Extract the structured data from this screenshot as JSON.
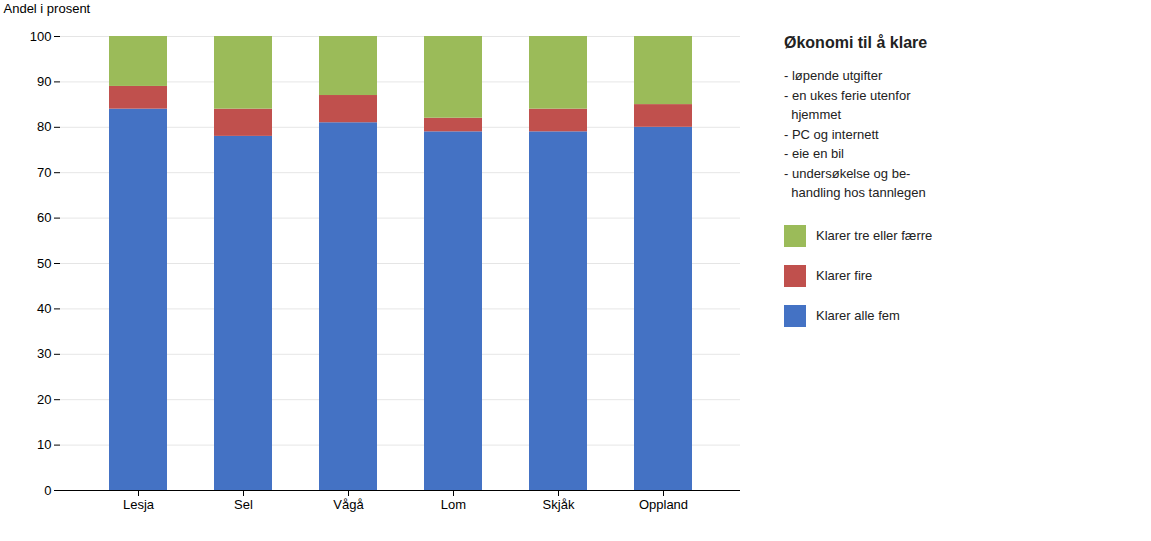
{
  "chart_data": {
    "type": "bar",
    "stacked": true,
    "categories": [
      "Lesja",
      "Sel",
      "Vågå",
      "Lom",
      "Skjåk",
      "Oppland"
    ],
    "series": [
      {
        "name": "Klarer alle fem",
        "color": "#4472C4",
        "values": [
          84,
          78,
          81,
          79,
          79,
          80
        ]
      },
      {
        "name": "Klarer fire",
        "color": "#C0504D",
        "values": [
          5,
          6,
          6,
          3,
          5,
          5
        ]
      },
      {
        "name": "Klarer tre eller fær­re",
        "color": "#9BBB59",
        "values": [
          11,
          16,
          13,
          18,
          16,
          15
        ]
      }
    ],
    "ylabel": "Andel i prosent",
    "ylim": [
      0,
      100
    ],
    "yticks": [
      0,
      10,
      20,
      30,
      40,
      50,
      60,
      70,
      80,
      90,
      100
    ],
    "grid": true,
    "legend": "right",
    "legend_title": "Økonomi til å klare",
    "annotation": [
      "- løpende utgifter",
      "- en ukes ferie utenfor",
      "  hjemmet",
      "- PC og internett",
      "- eie en bil",
      "- undersøkelse og be-",
      "  handling hos tannlegen"
    ]
  }
}
